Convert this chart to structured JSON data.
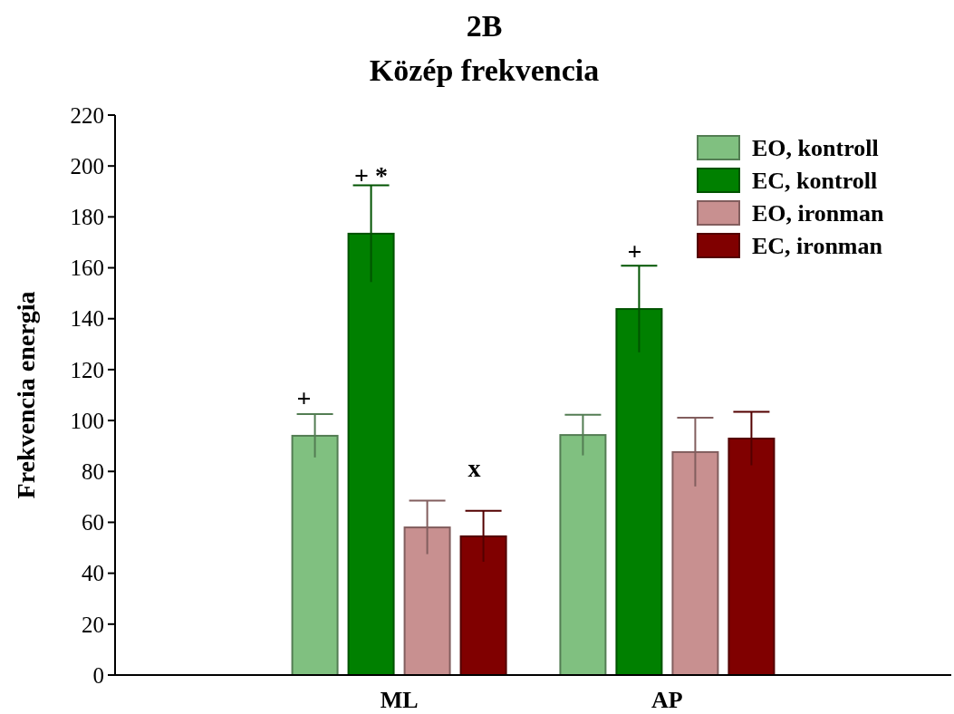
{
  "chart_data": {
    "type": "bar",
    "title": "2B",
    "subtitle": "Közép frekvencia",
    "ylabel": "Frekvencia energia",
    "categories": [
      "ML",
      "AP"
    ],
    "series": [
      {
        "name": "EO, kontroll",
        "color": "#80c080",
        "values": [
          94,
          94.3
        ],
        "errors": [
          8.5,
          8
        ]
      },
      {
        "name": "EC, kontroll",
        "color": "#008000",
        "values": [
          173.4,
          143.8
        ],
        "errors": [
          19,
          17
        ]
      },
      {
        "name": "EO, ironman",
        "color": "#c89090",
        "values": [
          58,
          87.6
        ],
        "errors": [
          10.5,
          13.5
        ]
      },
      {
        "name": "EC, ironman",
        "color": "#800000",
        "values": [
          54.5,
          92.9
        ],
        "errors": [
          10,
          10.5
        ]
      }
    ],
    "annotations": [
      "+",
      "+ *",
      "x",
      "+"
    ],
    "ylim": [
      0,
      220
    ],
    "yticks": [
      0,
      20,
      40,
      60,
      80,
      100,
      120,
      140,
      160,
      180,
      200,
      220
    ],
    "grid": false,
    "legend": "top right"
  }
}
